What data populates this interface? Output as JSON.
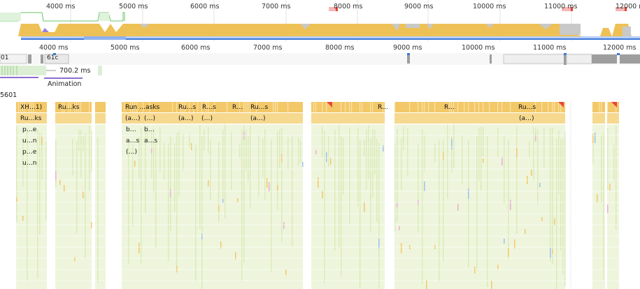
{
  "overview": {
    "ticks": [
      "4000 ms",
      "5000 ms",
      "6000 ms",
      "7000 ms",
      "8000 ms",
      "9000 ms",
      "10000 ms",
      "11000 ms",
      "12000 ms"
    ]
  },
  "timeline": {
    "ticks": [
      "4000 ms",
      "5000 ms",
      "6000 ms",
      "7000 ms",
      "8000 ms",
      "9000 ms",
      "10000 ms",
      "11000 ms",
      "12000 ms"
    ]
  },
  "frames": {
    "left_label": "01",
    "frame_label": "61c"
  },
  "interactions": {
    "duration": "700.2 ms",
    "animation_label": "Animation"
  },
  "main_track": {
    "label": "5601"
  },
  "flame": {
    "row0": [
      "XH…1)",
      "Ru…ks",
      "Run …asks",
      "Ru…s",
      "R…s",
      "R…",
      "Ru…s",
      "R…",
      "R…",
      "Ru…s"
    ],
    "row1": [
      "Ru…ks",
      "(a…)",
      "(…)",
      "(a…)",
      "(…)",
      "(a…)",
      "(a…)"
    ],
    "col_left": [
      "p…e",
      "u…n",
      "p…e",
      "u…n"
    ],
    "col_run": [
      "(a…)",
      "b…",
      "a…s",
      "(…)"
    ],
    "col_run2": [
      "(…)",
      "b…",
      "a…s"
    ]
  },
  "colors": {
    "task": "#f3c868",
    "script": "#eef5dc",
    "script_dark": "#dbeab9",
    "long_task": "#e8453c",
    "gpu": "#3b78d8",
    "purple": "#8e6ccf"
  }
}
